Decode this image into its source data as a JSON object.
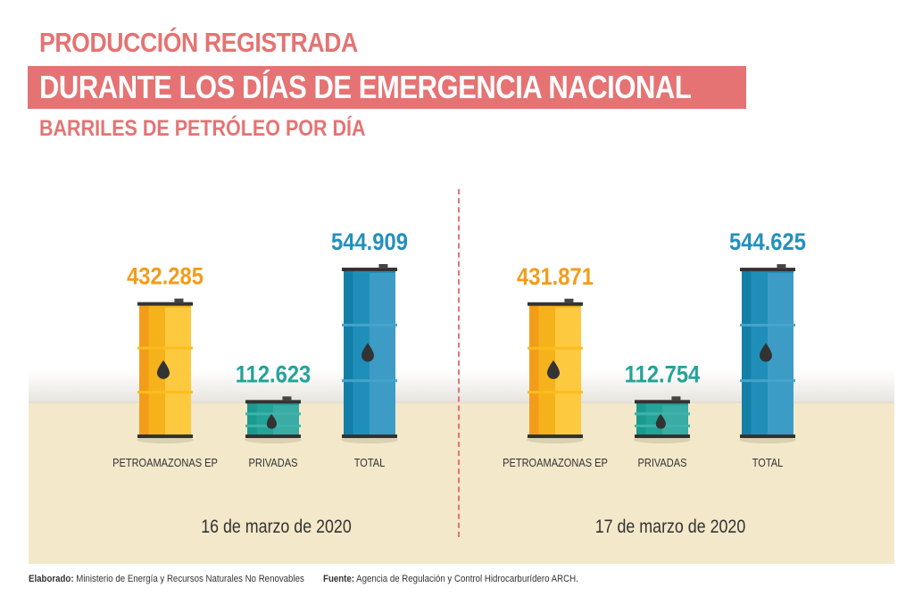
{
  "header": {
    "title_line1": "PRODUCCIÓN REGISTRADA",
    "title_line2": "DURANTE LOS DÍAS DE EMERGENCIA NACIONAL",
    "subtitle": "BARRILES DE PETRÓLEO POR DÍA"
  },
  "colors": {
    "title": "#e57373",
    "petroamazonas": "#f6b21b",
    "privadas": "#24a398",
    "total": "#1f8fba",
    "floor": "#f3e8c9",
    "drop": "#333333"
  },
  "chart_data": {
    "type": "bar",
    "title": "Producción registrada durante los días de emergencia nacional",
    "ylabel": "Barriles de petróleo por día",
    "categories": [
      "PETROAMAZONAS EP",
      "PRIVADAS",
      "TOTAL"
    ],
    "groups": [
      {
        "date": "16 de marzo de 2020",
        "values": [
          432285,
          112623,
          544909
        ],
        "labels": [
          "432.285",
          "112.623",
          "544.909"
        ]
      },
      {
        "date": "17 de marzo de 2020",
        "values": [
          431871,
          112754,
          544625
        ],
        "labels": [
          "431.871",
          "112.754",
          "544.625"
        ]
      }
    ],
    "series": [
      {
        "name": "16 de marzo de 2020",
        "values": [
          432285,
          112623,
          544909
        ]
      },
      {
        "name": "17 de marzo de 2020",
        "values": [
          431871,
          112754,
          544625
        ]
      }
    ],
    "mark": "oil-barrel",
    "grid": false,
    "legend": "none"
  },
  "footer": {
    "elaborado_label": "Elaborado:",
    "elaborado_text": "Ministerio de Energía y Recursos Naturales No Renovables",
    "fuente_label": "Fuente:",
    "fuente_text": "Agencia de Regulación y Control Hidrocarburídero ARCH."
  }
}
